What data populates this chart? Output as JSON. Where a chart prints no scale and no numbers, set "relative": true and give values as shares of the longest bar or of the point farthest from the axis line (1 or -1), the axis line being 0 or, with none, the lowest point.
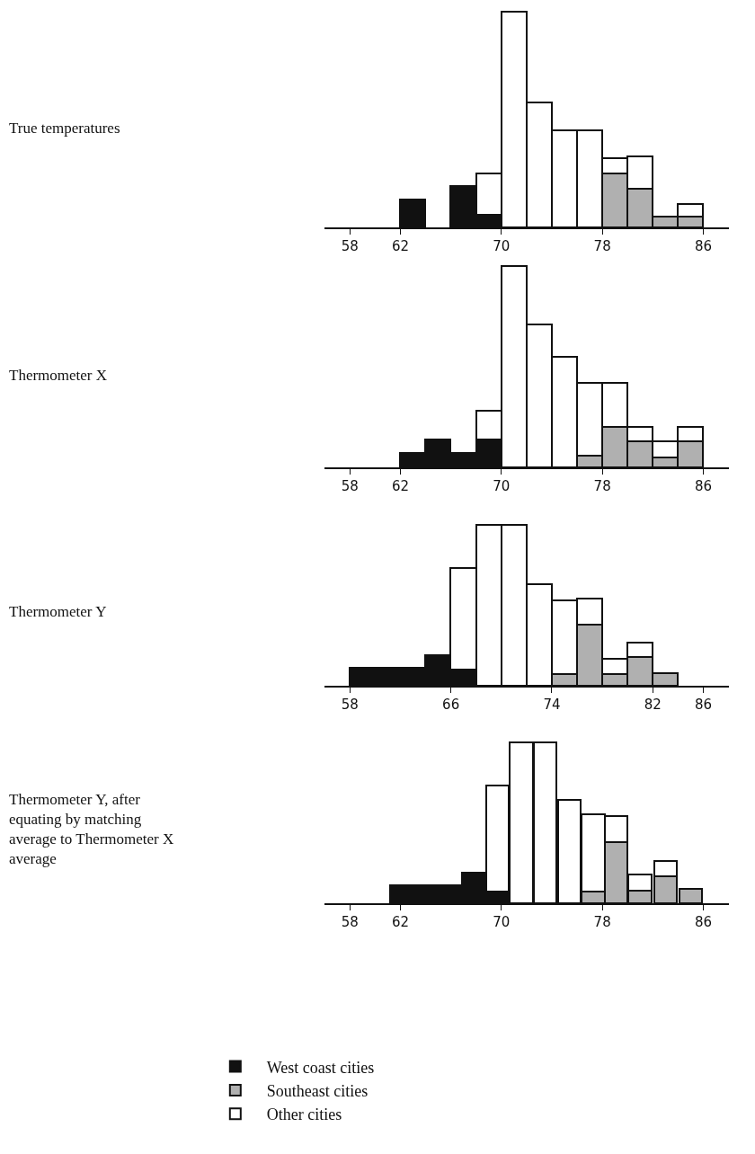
{
  "chart_data": [
    {
      "type": "bar",
      "ylabel": "True temperatures",
      "stacked": true,
      "relative": true,
      "legend": "bottom",
      "x": [
        63,
        67,
        69,
        71,
        73,
        75,
        77,
        79,
        81,
        83,
        85
      ],
      "xlim": [
        56,
        88
      ],
      "xticks": [
        58,
        62,
        70,
        78,
        86
      ],
      "series": [
        {
          "name": "West coast cities",
          "color": "#111111",
          "values": [
            0.13,
            0.19,
            0.06,
            null,
            null,
            null,
            null,
            null,
            null,
            null,
            null
          ]
        },
        {
          "name": "Southeast cities",
          "color": "#b0b0b0",
          "values": [
            null,
            null,
            null,
            null,
            null,
            null,
            null,
            0.25,
            0.18,
            0.05,
            0.05
          ]
        },
        {
          "name": "Other cities",
          "color": "#ffffff",
          "values": [
            null,
            null,
            0.19,
            1,
            0.58,
            0.45,
            0.45,
            0.07,
            0.15,
            null,
            0.06
          ]
        }
      ]
    },
    {
      "type": "bar",
      "ylabel": "Thermometer X",
      "stacked": true,
      "relative": true,
      "x": [
        63,
        65,
        67,
        69,
        71,
        73,
        75,
        77,
        79,
        81,
        83,
        85
      ],
      "xlim": [
        56,
        88
      ],
      "xticks": [
        58,
        62,
        70,
        78,
        86
      ],
      "series": [
        {
          "color": "#111111",
          "values": [
            0.07,
            0.14,
            0.07,
            0.14,
            null,
            null,
            null,
            null,
            null,
            null,
            null,
            null
          ]
        },
        {
          "color": "#b0b0b0",
          "values": [
            null,
            null,
            null,
            null,
            null,
            null,
            null,
            0.06,
            0.2,
            0.13,
            0.05,
            0.13
          ]
        },
        {
          "color": "#ffffff",
          "values": [
            null,
            null,
            null,
            0.14,
            1,
            0.71,
            0.55,
            0.36,
            0.22,
            0.07,
            0.08,
            0.07
          ]
        }
      ]
    },
    {
      "type": "bar",
      "ylabel": "Thermometer Y",
      "stacked": true,
      "relative": true,
      "x": [
        59,
        61,
        63,
        65,
        67,
        69,
        71,
        73,
        75,
        77,
        79,
        81,
        83
      ],
      "xlim": [
        56,
        88
      ],
      "xticks": [
        58,
        66,
        74,
        82,
        86
      ],
      "series": [
        {
          "color": "#111111",
          "values": [
            0.11,
            0.11,
            0.11,
            0.19,
            0.1,
            null,
            null,
            null,
            null,
            null,
            null,
            null,
            null
          ]
        },
        {
          "color": "#b0b0b0",
          "values": [
            null,
            null,
            null,
            null,
            null,
            null,
            null,
            null,
            0.07,
            0.38,
            0.07,
            0.18,
            0.08
          ]
        },
        {
          "color": "#ffffff",
          "values": [
            null,
            null,
            null,
            null,
            0.63,
            1,
            1,
            0.63,
            0.46,
            0.16,
            0.1,
            0.09,
            null
          ]
        }
      ]
    },
    {
      "type": "bar",
      "ylabel": "Thermometer Y, after\nequating by matching\naverage to Thermometer X\naverage",
      "stacked": true,
      "relative": true,
      "x": [
        62.1,
        64,
        65.9,
        67.8,
        69.7,
        71.6,
        73.5,
        75.4,
        77.3,
        79.1,
        81,
        83,
        85
      ],
      "xlim": [
        56,
        88
      ],
      "xticks": [
        58,
        62,
        70,
        78,
        86
      ],
      "series": [
        {
          "color": "#111111",
          "values": [
            0.11,
            0.11,
            0.11,
            0.19,
            0.07,
            null,
            null,
            null,
            null,
            null,
            null,
            null,
            null
          ]
        },
        {
          "color": "#b0b0b0",
          "values": [
            null,
            null,
            null,
            null,
            null,
            null,
            null,
            null,
            0.07,
            0.38,
            0.08,
            0.17,
            0.09
          ]
        },
        {
          "color": "#ffffff",
          "values": [
            null,
            null,
            null,
            null,
            0.66,
            1,
            1,
            0.64,
            0.48,
            0.16,
            0.1,
            0.09,
            null
          ]
        }
      ]
    }
  ]
}
